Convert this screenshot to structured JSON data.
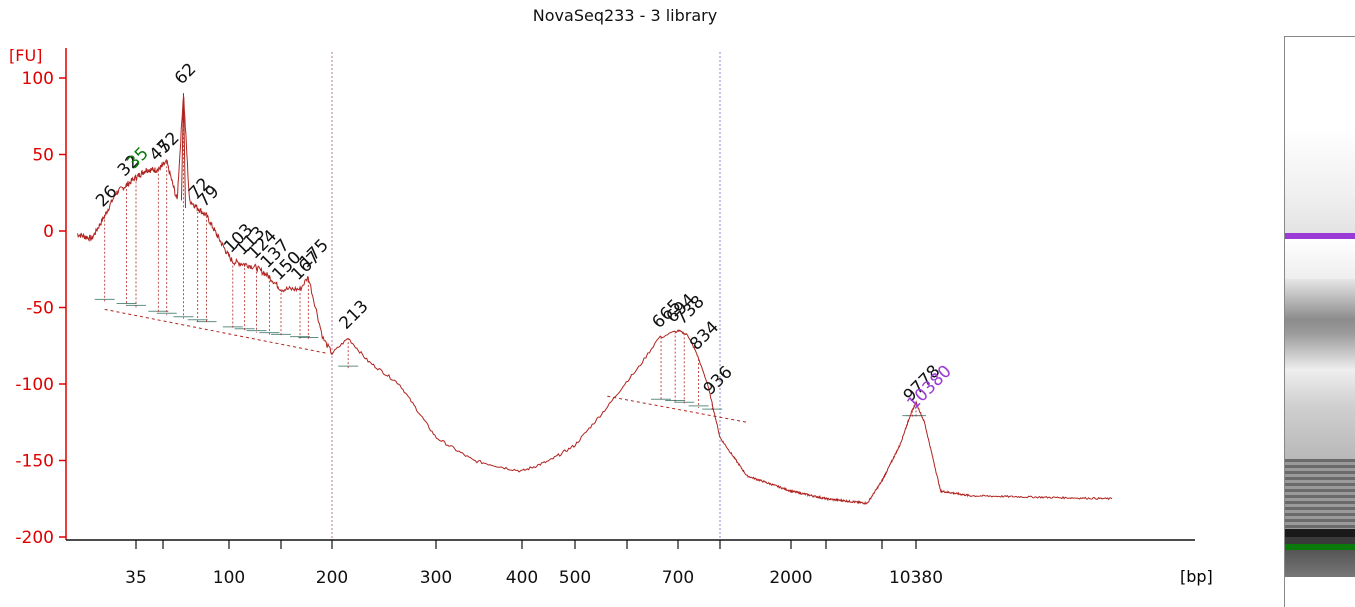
{
  "title": "NovaSeq233 - 3 library",
  "colors": {
    "trace": "#b0231f",
    "axis": "#e00000",
    "peak_label": "#111111",
    "lower_marker": "#0a7a0a",
    "upper_marker": "#9b3bd6",
    "baseline_segment": "#5f8f85",
    "region_line_1": "#b07aa0",
    "region_line_2": "#8a8ad6"
  },
  "chart_data": {
    "type": "line",
    "title": "NovaSeq233 - 3 library",
    "xlabel": "[bp]",
    "ylabel": "[FU]",
    "ylim": [
      -205,
      105
    ],
    "x_scale": "categorical-log-like",
    "y_ticks": [
      100,
      50,
      0,
      -50,
      -100,
      -150,
      -200
    ],
    "x_tick_labels": [
      "35",
      "100",
      "200",
      "300",
      "400",
      "500",
      "700",
      "2000",
      "10380"
    ],
    "x_tick_positions_bp": [
      35,
      100,
      200,
      300,
      400,
      500,
      700,
      2000,
      10380
    ],
    "series": [
      {
        "x_bp": [
          20,
          23,
          26,
          29,
          32,
          35,
          40,
          47,
          52,
          58,
          62,
          66,
          72,
          79,
          90,
          103,
          115,
          124,
          137,
          150,
          167,
          175,
          190,
          200,
          213,
          230,
          260,
          300,
          340,
          380,
          400,
          450,
          500,
          560,
          620,
          660,
          700,
          760,
          820,
          900,
          1000,
          1300,
          2000,
          3000,
          5000,
          8000,
          9500,
          10380,
          11500,
          14000,
          20000,
          40000
        ],
        "y_fu": [
          -2,
          -5,
          10,
          25,
          30,
          35,
          40,
          40,
          45,
          20,
          90,
          20,
          15,
          10,
          -5,
          -20,
          -22,
          -24,
          -30,
          -38,
          -38,
          -30,
          -70,
          -80,
          -70,
          -85,
          -100,
          -135,
          -150,
          -155,
          -157,
          -150,
          -140,
          -115,
          -90,
          -70,
          -65,
          -68,
          -80,
          -100,
          -135,
          -160,
          -170,
          -175,
          -178,
          -140,
          -120,
          -112,
          -125,
          -170,
          -173,
          -175
        ]
      }
    ],
    "peaks": [
      {
        "bp": 26,
        "label": "26"
      },
      {
        "bp": 32,
        "label": "32"
      },
      {
        "bp": 35,
        "label": "35",
        "marker": "lower"
      },
      {
        "bp": 47,
        "label": "47"
      },
      {
        "bp": 52,
        "label": "52"
      },
      {
        "bp": 62,
        "label": "62"
      },
      {
        "bp": 72,
        "label": "72"
      },
      {
        "bp": 79,
        "label": "79"
      },
      {
        "bp": 103,
        "label": "103"
      },
      {
        "bp": 113,
        "label": "113"
      },
      {
        "bp": 124,
        "label": "124"
      },
      {
        "bp": 137,
        "label": "137"
      },
      {
        "bp": 150,
        "label": "150"
      },
      {
        "bp": 167,
        "label": "167"
      },
      {
        "bp": 175,
        "label": "175"
      },
      {
        "bp": 213,
        "label": "213"
      },
      {
        "bp": 665,
        "label": "665"
      },
      {
        "bp": 694,
        "label": "694"
      },
      {
        "bp": 738,
        "label": "738"
      },
      {
        "bp": 834,
        "label": "834"
      },
      {
        "bp": 936,
        "label": "936"
      },
      {
        "bp": 9778,
        "label": "9778"
      },
      {
        "bp": 10380,
        "label": "10380",
        "marker": "upper"
      }
    ],
    "region_boundaries_bp": [
      200,
      1000
    ],
    "grid": false,
    "legend": "none"
  },
  "gel": {
    "upper_marker_color": "#9b3bd6",
    "lower_marker_color": "#0a7a0a"
  }
}
